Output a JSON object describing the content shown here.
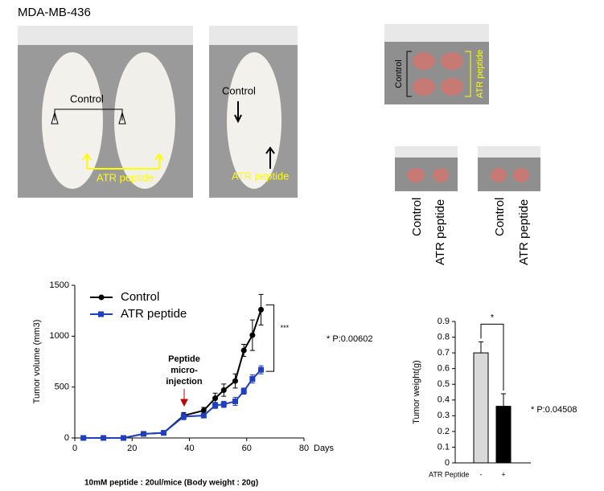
{
  "title": "MDA-MB-436",
  "photos": [
    {
      "control": "Control",
      "treated": "ATR peptide"
    },
    {
      "control": "Control",
      "treated": "ATR peptide"
    },
    {
      "control": "Control",
      "treated": "ATR peptide"
    }
  ],
  "tumor_labels": [
    [
      "Control",
      "ATR peptide"
    ],
    [
      "Control",
      "ATR peptide"
    ]
  ],
  "chart_data": [
    {
      "type": "line",
      "x": [
        3,
        10,
        17,
        24,
        31,
        38,
        45,
        49,
        52,
        56,
        59,
        62,
        65
      ],
      "series": [
        {
          "name": "Control",
          "color": "#000000",
          "marker": "circle",
          "values": [
            0,
            0,
            0,
            40,
            50,
            220,
            270,
            390,
            470,
            560,
            860,
            1010,
            1260
          ],
          "errors": [
            5,
            5,
            5,
            10,
            10,
            30,
            30,
            50,
            60,
            70,
            60,
            150,
            150
          ]
        },
        {
          "name": "ATR peptide",
          "color": "#1f3fbf",
          "marker": "square",
          "values": [
            0,
            0,
            0,
            40,
            50,
            210,
            220,
            320,
            330,
            360,
            460,
            580,
            670
          ],
          "errors": [
            5,
            5,
            5,
            10,
            10,
            30,
            20,
            30,
            30,
            40,
            30,
            40,
            40
          ]
        }
      ],
      "xlim": [
        0,
        80
      ],
      "xticks": [
        0,
        20,
        40,
        60,
        80
      ],
      "ylim": [
        0,
        1500
      ],
      "yticks": [
        0,
        500,
        1000,
        1500
      ],
      "x_label": "Days",
      "y_label": "Tumor volume (mm3)",
      "injection_note": [
        "Peptide",
        "micro-",
        "injection"
      ],
      "significance": "***",
      "p_value": "* P:0.00602",
      "footnote": "10mM peptide : 20ul/mice (Body weight : 20g)"
    },
    {
      "type": "bar",
      "categories": [
        "-",
        "+"
      ],
      "values": [
        0.7,
        0.36
      ],
      "errors": [
        0.07,
        0.08
      ],
      "colors": [
        "#d9d9d9",
        "#000000"
      ],
      "ylim": [
        0,
        0.9
      ],
      "yticks": [
        0,
        0.1,
        0.2,
        0.3,
        0.4,
        0.5,
        0.6,
        0.7,
        0.8,
        0.9
      ],
      "x_label": "ATR Peptide",
      "y_label": "Tumor  weight(g)",
      "significance": "*",
      "p_value": "* P:0.04508"
    }
  ]
}
